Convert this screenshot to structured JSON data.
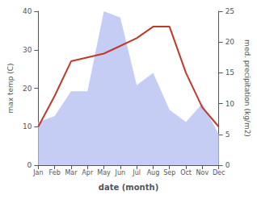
{
  "chart_data": {
    "type": "line",
    "xlabel": "date (month)",
    "ylabel": "max temp (C)",
    "y2label": "med. precipitation (kg/m2)",
    "categories": [
      "Jan",
      "Feb",
      "Mar",
      "Apr",
      "May",
      "Jun",
      "Jul",
      "Aug",
      "Sep",
      "Oct",
      "Nov",
      "Dec"
    ],
    "series": [
      {
        "type": "area",
        "axis": "y2",
        "color": "#c5cdf5",
        "values": [
          7,
          8,
          12,
          12,
          25,
          24,
          13,
          15,
          9,
          7,
          10,
          5
        ]
      },
      {
        "type": "line",
        "axis": "y",
        "color": "#c0392b",
        "values": [
          10,
          18,
          27,
          28,
          29,
          31,
          33,
          36,
          36,
          24,
          15,
          10
        ]
      }
    ],
    "ylim": [
      0,
      40
    ],
    "yticks": [
      0,
      10,
      20,
      30,
      40
    ],
    "y2lim": [
      0,
      25
    ],
    "y2ticks": [
      0,
      5,
      10,
      15,
      20,
      25
    ],
    "grid": false
  }
}
